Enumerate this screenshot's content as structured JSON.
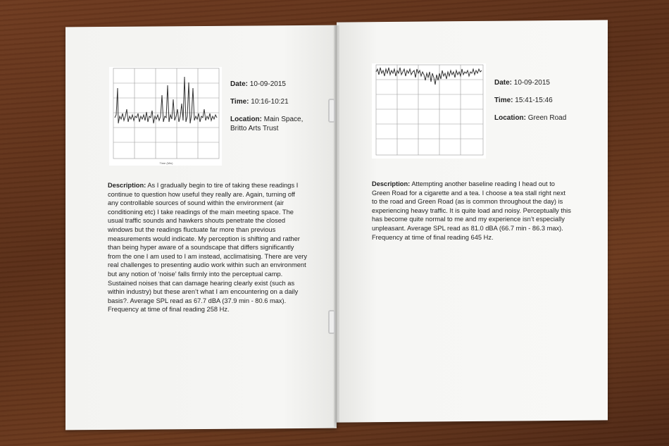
{
  "left_page": {
    "chart": {
      "xlabel": "Time (Min)"
    },
    "date_label": "Date:",
    "date": "10-09-2015",
    "time_label": "Time:",
    "time": "10:16-10:21",
    "location_label": "Location:",
    "location": "Main Space, Britto Arts Trust",
    "description_label": "Description:",
    "description": "As I gradually begin to tire of taking these readings I continue to question how useful they really are. Again, turning off any controllable sources of sound within the environment (air conditioning etc) I take readings of the main meeting space. The usual traffic sounds and hawkers shouts penetrate the closed windows but the readings fluctuate far more than previous measurements would indicate. My perception is shifting and rather than being hyper aware of a soundscape that differs significantly from the one I am used to I am instead, acclimatising. There are very real challenges to presenting audio work within such an environment but any notion of ‘noise’ falls firmly into the perceptual camp. Sustained noises that can damage hearing clearly exist (such as within industry) but these aren’t what I am encountering on a daily basis?. Average SPL read as 67.7 dBA (37.9 min - 80.6 max). Frequency at time of final reading 258 Hz."
  },
  "right_page": {
    "date_label": "Date:",
    "date": "10-09-2015",
    "time_label": "Time:",
    "time": "15:41-15:46",
    "location_label": "Location:",
    "location": "Green Road",
    "description_label": "Description:",
    "description": "Attempting another baseline reading I head out to Green Road for a cigarette and a tea. I choose a tea stall right next to the road and Green Road (as is common throughout the day) is experiencing heavy traffic. It is quite load and noisy. Perceptually this has become quite normal to me and my experience isn’t especially unpleasant. Average SPL read as 81.0 dBA (66.7 min - 86.3 max). Frequency at time of final reading 645 Hz."
  },
  "colors": {
    "wood": "#5a2e17",
    "paper": "#f7f7f5",
    "ink": "#222222"
  }
}
